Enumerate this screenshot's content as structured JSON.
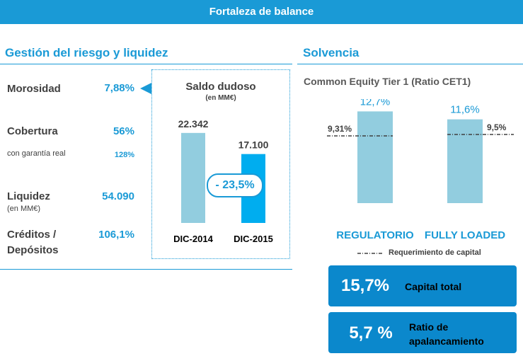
{
  "banner": {
    "title": "Fortaleza de balance"
  },
  "left": {
    "title": "Gestión del riesgo y liquidez",
    "metrics": {
      "morosidad": {
        "label": "Morosidad",
        "value": "7,88%"
      },
      "cobertura": {
        "label": "Cobertura",
        "value": "56%",
        "sub_label": "con garantía real",
        "sub_value": "128%"
      },
      "liquidez": {
        "label": "Liquidez",
        "sub_label": "(en MM€)",
        "value": "54.090"
      },
      "creditos": {
        "label_line1": "Créditos /",
        "label_line2": "Depósitos",
        "value": "106,1%"
      }
    }
  },
  "right": {
    "title": "Solvencia",
    "subtitle": "Common Equity Tier 1 (Ratio CET1)",
    "legend": "Requerimiento de capital",
    "kpis": [
      {
        "value": "15,7%",
        "label_line1": "Capital total",
        "label_line2": ""
      },
      {
        "value": "5,7 %",
        "label_line1": "Ratio de",
        "label_line2": "apalancamiento"
      }
    ]
  },
  "colors": {
    "accent": "#1a9ad6",
    "bar_light": "#92cddf",
    "bar_bright": "#00adef",
    "kpi_bg": "#0b88cc"
  },
  "chart_data": [
    {
      "type": "bar",
      "title": "Saldo dudoso",
      "subtitle": "(en MM€)",
      "categories": [
        "DIC-2014",
        "DIC-2015"
      ],
      "values": [
        22342,
        17100
      ],
      "value_labels": [
        "22.342",
        "17.100"
      ],
      "ylim": [
        0,
        26000
      ],
      "annotation": "- 23,5%"
    },
    {
      "type": "bar",
      "title": "Common Equity Tier 1 (Ratio CET1)",
      "categories": [
        "REGULATORIO",
        "FULLY LOADED"
      ],
      "values": [
        12.7,
        11.6
      ],
      "value_labels": [
        "12,7%",
        "11,6%"
      ],
      "requirement_values": [
        9.31,
        9.5
      ],
      "requirement_labels": [
        "9,31%",
        "9,5%"
      ],
      "legend": "Requerimiento de capital",
      "ylim": [
        0,
        14.7
      ]
    }
  ]
}
